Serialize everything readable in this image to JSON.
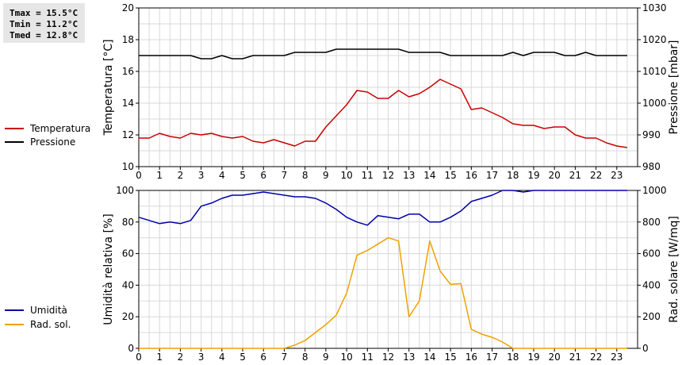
{
  "stats": {
    "tmax": "Tmax = 15.5°C",
    "tmin": "Tmin = 11.2°C",
    "tmed": "Tmed = 12.8°C"
  },
  "legend": {
    "temperature": {
      "label": "Temperatura",
      "color": "#cc0000"
    },
    "pressure": {
      "label": "Pressione",
      "color": "#000000"
    },
    "humidity": {
      "label": "Umidità",
      "color": "#0000aa"
    },
    "radiation": {
      "label": "Rad. sol.",
      "color": "#f0a000"
    }
  },
  "chart_data": [
    {
      "type": "line",
      "x_ticks": [
        "0",
        "1",
        "2",
        "3",
        "4",
        "5",
        "6",
        "7",
        "8",
        "9",
        "10",
        "11",
        "12",
        "13",
        "14",
        "15",
        "16",
        "17",
        "18",
        "19",
        "20",
        "21",
        "22",
        "23"
      ],
      "xlim": [
        0,
        24
      ],
      "ylabel": "Temperatura [°C]",
      "ylim": [
        10,
        20
      ],
      "y_ticks": [
        "10",
        "12",
        "14",
        "16",
        "18",
        "20"
      ],
      "y2label": "Pressione [mbar]",
      "y2lim": [
        980,
        1030
      ],
      "y2_ticks": [
        "980",
        "990",
        "1000",
        "1010",
        "1020",
        "1030"
      ],
      "grid": true,
      "series": [
        {
          "name": "Temperatura",
          "axis": "left",
          "color": "#cc0000",
          "x": [
            0,
            0.5,
            1,
            1.5,
            2,
            2.5,
            3,
            3.5,
            4,
            4.5,
            5,
            5.5,
            6,
            6.5,
            7,
            7.5,
            8,
            8.5,
            9,
            9.5,
            10,
            10.5,
            11,
            11.5,
            12,
            12.5,
            13,
            13.5,
            14,
            14.5,
            15,
            15.5,
            16,
            16.5,
            17,
            17.5,
            18,
            18.5,
            19,
            19.5,
            20,
            20.5,
            21,
            21.5,
            22,
            22.5,
            23,
            23.5
          ],
          "values": [
            11.8,
            11.8,
            12.1,
            11.9,
            11.8,
            12.1,
            12.0,
            12.1,
            11.9,
            11.8,
            11.9,
            11.6,
            11.5,
            11.7,
            11.5,
            11.3,
            11.6,
            11.6,
            12.5,
            13.2,
            13.9,
            14.8,
            14.7,
            14.3,
            14.3,
            14.8,
            14.4,
            14.6,
            15.0,
            15.5,
            15.2,
            14.9,
            13.6,
            13.7,
            13.4,
            13.1,
            12.7,
            12.6,
            12.6,
            12.4,
            12.5,
            12.5,
            12.0,
            11.8,
            11.8,
            11.5,
            11.3,
            11.2
          ]
        },
        {
          "name": "Pressione",
          "axis": "right",
          "color": "#000000",
          "x": [
            0,
            0.5,
            1,
            1.5,
            2,
            2.5,
            3,
            3.5,
            4,
            4.5,
            5,
            5.5,
            6,
            6.5,
            7,
            7.5,
            8,
            8.5,
            9,
            9.5,
            10,
            10.5,
            11,
            11.5,
            12,
            12.5,
            13,
            13.5,
            14,
            14.5,
            15,
            15.5,
            16,
            16.5,
            17,
            17.5,
            18,
            18.5,
            19,
            19.5,
            20,
            20.5,
            21,
            21.5,
            22,
            22.5,
            23,
            23.5
          ],
          "values": [
            1015,
            1015,
            1015,
            1015,
            1015,
            1015,
            1014,
            1014,
            1015,
            1014,
            1014,
            1015,
            1015,
            1015,
            1015,
            1016,
            1016,
            1016,
            1016,
            1017,
            1017,
            1017,
            1017,
            1017,
            1017,
            1017,
            1016,
            1016,
            1016,
            1016,
            1015,
            1015,
            1015,
            1015,
            1015,
            1015,
            1016,
            1015,
            1016,
            1016,
            1016,
            1015,
            1015,
            1016,
            1015,
            1015,
            1015,
            1015
          ]
        }
      ]
    },
    {
      "type": "line",
      "x_ticks": [
        "0",
        "1",
        "2",
        "3",
        "4",
        "5",
        "6",
        "7",
        "8",
        "9",
        "10",
        "11",
        "12",
        "13",
        "14",
        "15",
        "16",
        "17",
        "18",
        "19",
        "20",
        "21",
        "22",
        "23"
      ],
      "xlim": [
        0,
        24
      ],
      "ylabel": "Umidità relativa [%]",
      "ylim": [
        0,
        100
      ],
      "y_ticks": [
        "0",
        "20",
        "40",
        "60",
        "80",
        "100"
      ],
      "y2label": "Rad. solare [W/mq]",
      "y2lim": [
        0,
        1000
      ],
      "y2_ticks": [
        "0",
        "200",
        "400",
        "600",
        "800",
        "1000"
      ],
      "grid": true,
      "series": [
        {
          "name": "Umidità",
          "axis": "left",
          "color": "#0000aa",
          "x": [
            0,
            0.5,
            1,
            1.5,
            2,
            2.5,
            3,
            3.5,
            4,
            4.5,
            5,
            5.5,
            6,
            6.5,
            7,
            7.5,
            8,
            8.5,
            9,
            9.5,
            10,
            10.5,
            11,
            11.5,
            12,
            12.5,
            13,
            13.5,
            14,
            14.5,
            15,
            15.5,
            16,
            16.5,
            17,
            17.5,
            18,
            18.5,
            19,
            19.5,
            20,
            20.5,
            21,
            21.5,
            22,
            22.5,
            23,
            23.5
          ],
          "values": [
            83,
            81,
            79,
            80,
            79,
            81,
            90,
            92,
            95,
            97,
            97,
            98,
            99,
            98,
            97,
            96,
            96,
            95,
            92,
            88,
            83,
            80,
            78,
            84,
            83,
            82,
            85,
            85,
            80,
            80,
            83,
            87,
            93,
            95,
            97,
            100,
            100,
            99,
            100,
            100,
            100,
            100,
            100,
            100,
            100,
            100,
            100,
            100
          ]
        },
        {
          "name": "Rad. sol.",
          "axis": "right",
          "color": "#f0a000",
          "x": [
            0,
            0.5,
            1,
            1.5,
            2,
            2.5,
            3,
            3.5,
            4,
            4.5,
            5,
            5.5,
            6,
            6.5,
            7,
            7.5,
            8,
            8.5,
            9,
            9.5,
            10,
            10.5,
            11,
            11.5,
            12,
            12.5,
            13,
            13.5,
            14,
            14.5,
            15,
            15.5,
            16,
            16.5,
            17,
            17.5,
            18,
            18.5,
            19,
            19.5,
            20,
            20.5,
            21,
            21.5,
            22,
            22.5,
            23,
            23.5
          ],
          "values": [
            0,
            0,
            0,
            0,
            0,
            0,
            0,
            0,
            0,
            0,
            0,
            0,
            0,
            0,
            0,
            20,
            50,
            100,
            150,
            210,
            350,
            590,
            620,
            660,
            700,
            680,
            200,
            300,
            680,
            490,
            405,
            410,
            120,
            90,
            70,
            40,
            0,
            0,
            0,
            0,
            0,
            0,
            0,
            0,
            0,
            0,
            0,
            0
          ]
        }
      ]
    }
  ]
}
